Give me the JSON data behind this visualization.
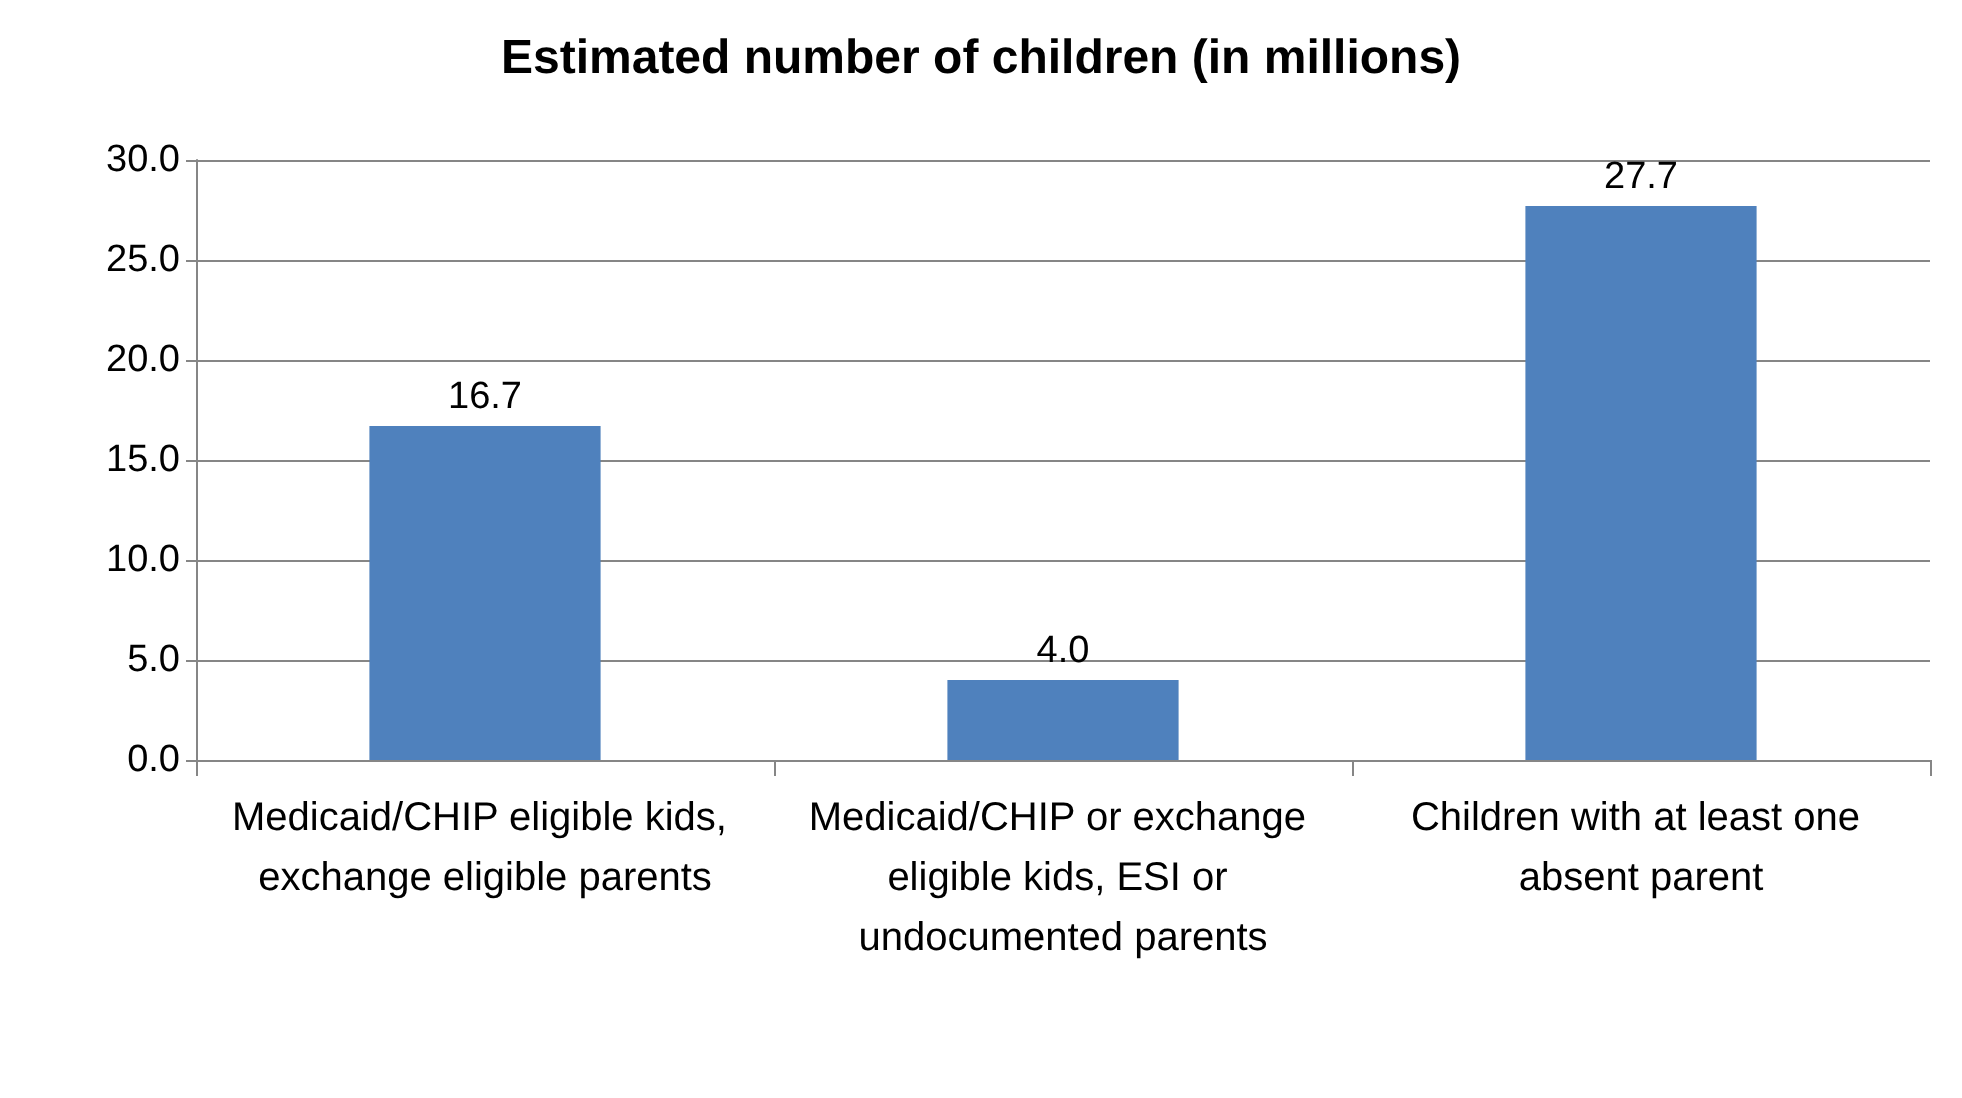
{
  "chart_data": {
    "type": "bar",
    "title": "Estimated number of children (in millions)",
    "categories": [
      "Medicaid/CHIP eligible kids, exchange eligible parents",
      "Medicaid/CHIP or exchange eligible kids, ESI or undocumented parents",
      "Children with at least one absent parent"
    ],
    "values": [
      16.7,
      4,
      27.7
    ],
    "value_labels": [
      "16.7",
      "4.0",
      "27.7"
    ],
    "color": "#4f81bd",
    "ylim": [
      0,
      30
    ],
    "yticks": [
      {
        "value": 0,
        "label": "0.0"
      },
      {
        "value": 5,
        "label": "5.0"
      },
      {
        "value": 10,
        "label": "10.0"
      },
      {
        "value": 15,
        "label": "15.0"
      },
      {
        "value": 20,
        "label": "20.0"
      },
      {
        "value": 25,
        "label": "25.0"
      },
      {
        "value": 30,
        "label": "30.0"
      }
    ],
    "grid": "y"
  }
}
